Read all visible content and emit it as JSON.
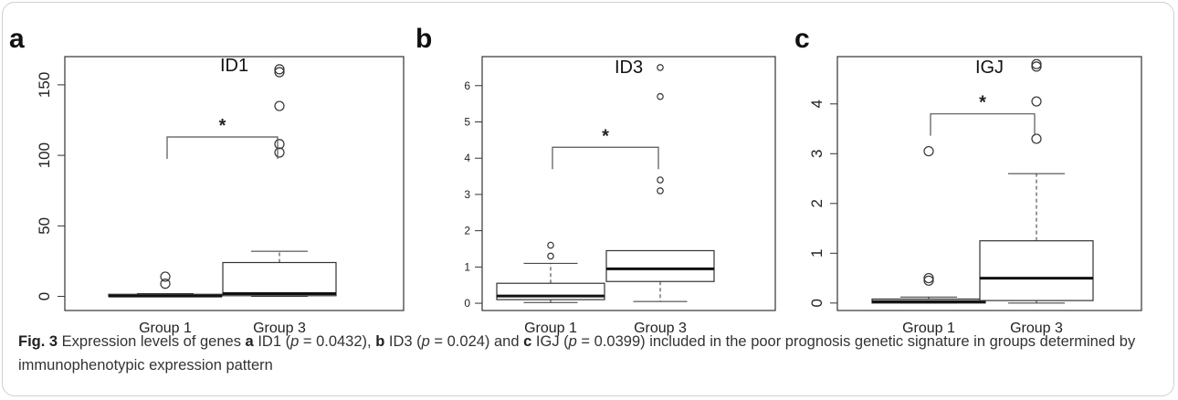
{
  "panels": [
    {
      "letter": "a",
      "title": "ID1"
    },
    {
      "letter": "b",
      "title": "ID3"
    },
    {
      "letter": "c",
      "title": "IGJ"
    }
  ],
  "significance_marker": "*",
  "caption": {
    "fig_label": "Fig. 3",
    "t1": " Expression levels of genes ",
    "a": "a",
    "t2": " ID1 (",
    "p1": "p",
    "t3": " = 0.0432), ",
    "b": "b",
    "t4": " ID3 (",
    "p2": "p",
    "t5": " = 0.024) and ",
    "c": "c",
    "t6": " IGJ (",
    "p3": "p",
    "t7": " = 0.0399) included in the poor prognosis genetic signature in groups determined by immunophenotypic expression pattern"
  },
  "chart_data": [
    {
      "type": "boxplot",
      "title": "ID1",
      "categories": [
        "Group 1",
        "Group 3"
      ],
      "ylim": [
        -10,
        170
      ],
      "yticks": [
        0,
        50,
        100,
        150
      ],
      "boxes": [
        {
          "name": "Group 1",
          "whisker_low": 0,
          "q1": 0,
          "median": 0.3,
          "q3": 1.5,
          "whisker_high": 2,
          "outliers": [
            9,
            14
          ]
        },
        {
          "name": "Group 3",
          "whisker_low": 0,
          "q1": 0.5,
          "median": 2,
          "q3": 24,
          "whisker_high": 32,
          "outliers": [
            102,
            108,
            135,
            159,
            161
          ]
        }
      ],
      "significance": {
        "label": "*",
        "between": [
          "Group 1",
          "Group 3"
        ],
        "level": 113
      }
    },
    {
      "type": "boxplot",
      "title": "ID3",
      "categories": [
        "Group 1",
        "Group 3"
      ],
      "ylim": [
        -0.2,
        6.8
      ],
      "yticks": [
        0,
        1,
        2,
        3,
        4,
        5,
        6
      ],
      "boxes": [
        {
          "name": "Group 1",
          "whisker_low": 0.02,
          "q1": 0.1,
          "median": 0.2,
          "q3": 0.55,
          "whisker_high": 1.1,
          "outliers": [
            1.3,
            1.6
          ]
        },
        {
          "name": "Group 3",
          "whisker_low": 0.05,
          "q1": 0.6,
          "median": 0.95,
          "q3": 1.45,
          "whisker_high": 1.45,
          "outliers": [
            3.1,
            3.4,
            5.7,
            6.5
          ]
        }
      ],
      "significance": {
        "label": "*",
        "between": [
          "Group 1",
          "Group 3"
        ],
        "level": 4.3
      }
    },
    {
      "type": "boxplot",
      "title": "IGJ",
      "categories": [
        "Group 1",
        "Group 3"
      ],
      "ylim": [
        -0.15,
        4.95
      ],
      "yticks": [
        0,
        1,
        2,
        3,
        4
      ],
      "boxes": [
        {
          "name": "Group 1",
          "whisker_low": 0,
          "q1": 0,
          "median": 0.03,
          "q3": 0.08,
          "whisker_high": 0.12,
          "outliers": [
            0.45,
            0.5,
            3.05
          ]
        },
        {
          "name": "Group 3",
          "whisker_low": 0,
          "q1": 0.05,
          "median": 0.5,
          "q3": 1.25,
          "whisker_high": 2.6,
          "outliers": [
            3.3,
            4.05,
            4.75,
            4.8
          ]
        }
      ],
      "significance": {
        "label": "*",
        "between": [
          "Group 1",
          "Group 3"
        ],
        "level": 3.8
      }
    }
  ]
}
